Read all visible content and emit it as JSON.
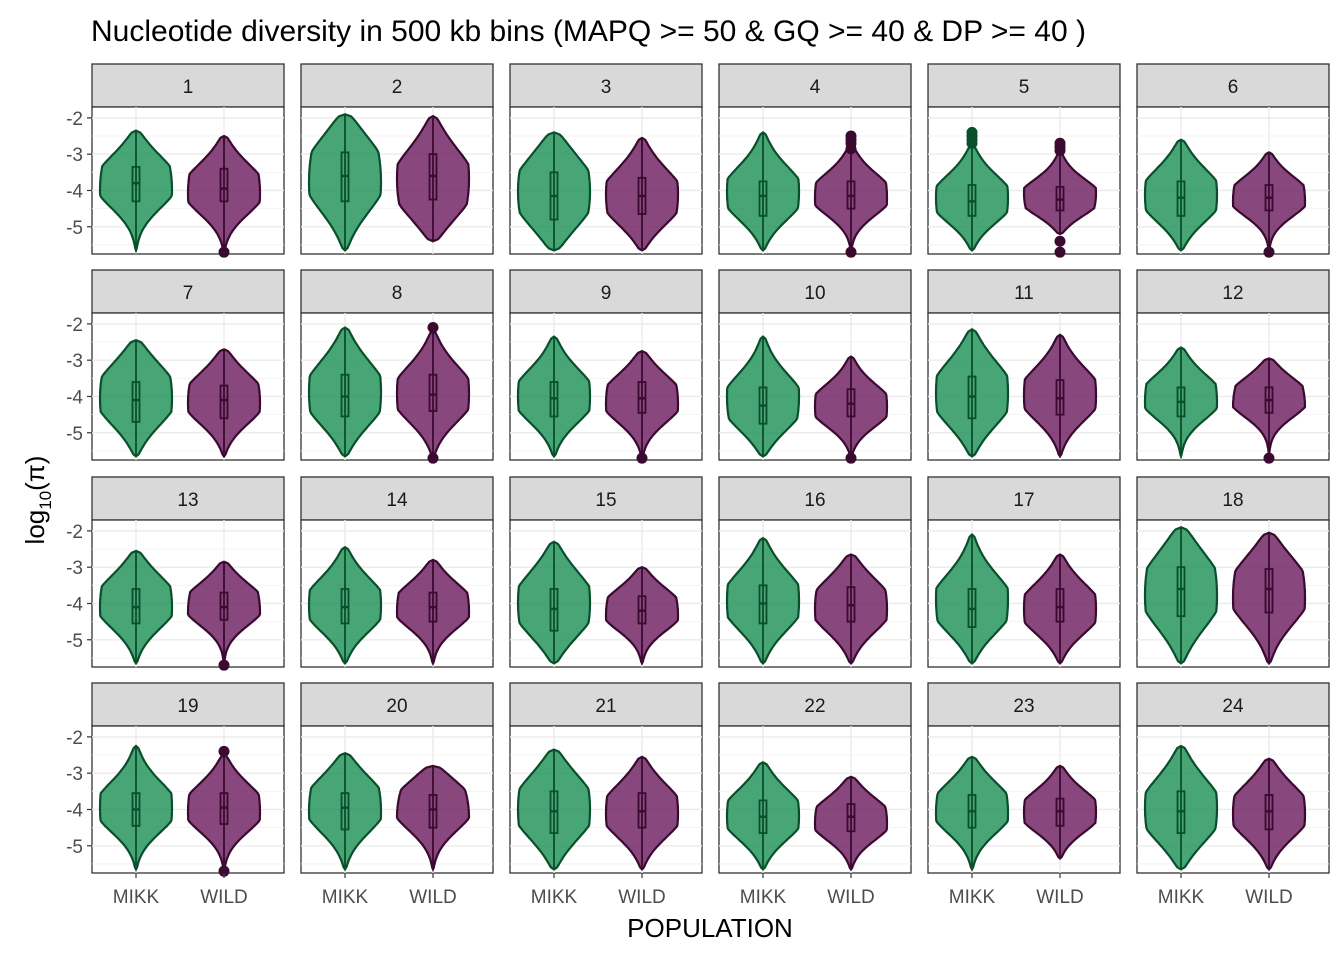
{
  "chart_data": {
    "type": "violin",
    "title": "Nucleotide diversity in 500 kb bins (MAPQ >= 50 & GQ >= 40 & DP >= 40 )",
    "xlabel": "POPULATION",
    "ylabel": "log10(π)",
    "ylabel_base": "log",
    "ylabel_sub": "10",
    "ylabel_rest": "(π)",
    "categories": [
      "MIKK",
      "WILD"
    ],
    "y_ticks": [
      -2,
      -3,
      -4,
      -5
    ],
    "y_tick_labels": [
      "-2",
      "-3",
      "-4",
      "-5"
    ],
    "ylim": [
      -5.75,
      -1.7
    ],
    "facet_layout": {
      "rows": 4,
      "cols": 6
    },
    "colors": {
      "MIKK": {
        "fill": "#1f9158",
        "stroke": "#0a4f2b"
      },
      "WILD": {
        "fill": "#6e1e60",
        "stroke": "#3a0a30"
      }
    },
    "facets": [
      {
        "label": "1",
        "MIKK": {
          "max": -2.35,
          "min": -5.65,
          "q1": -4.3,
          "median": -3.8,
          "q3": -3.35,
          "mode": -3.8,
          "outliers": []
        },
        "WILD": {
          "max": -2.5,
          "min": -5.65,
          "q1": -4.3,
          "median": -3.95,
          "q3": -3.4,
          "mode": -4.0,
          "outliers": [
            -5.7
          ]
        }
      },
      {
        "label": "2",
        "MIKK": {
          "max": -1.9,
          "min": -5.65,
          "q1": -4.3,
          "median": -3.6,
          "q3": -2.95,
          "mode": -3.6,
          "outliers": []
        },
        "WILD": {
          "max": -1.95,
          "min": -5.4,
          "q1": -4.25,
          "median": -3.6,
          "q3": -3.0,
          "mode": -3.9,
          "outliers": []
        }
      },
      {
        "label": "3",
        "MIKK": {
          "max": -2.4,
          "min": -5.65,
          "q1": -4.8,
          "median": -4.15,
          "q3": -3.5,
          "mode": -4.1,
          "outliers": []
        },
        "WILD": {
          "max": -2.55,
          "min": -5.65,
          "q1": -4.65,
          "median": -4.15,
          "q3": -3.65,
          "mode": -4.25,
          "outliers": []
        }
      },
      {
        "label": "4",
        "MIKK": {
          "max": -2.4,
          "min": -5.65,
          "q1": -4.7,
          "median": -4.15,
          "q3": -3.75,
          "mode": -4.15,
          "outliers": []
        },
        "WILD": {
          "max": -2.75,
          "min": -5.65,
          "q1": -4.5,
          "median": -4.15,
          "q3": -3.75,
          "mode": -4.15,
          "outliers": [
            -2.5,
            -2.6,
            -2.7,
            -2.85,
            -5.7
          ]
        }
      },
      {
        "label": "5",
        "MIKK": {
          "max": -2.75,
          "min": -5.65,
          "q1": -4.7,
          "median": -4.3,
          "q3": -3.85,
          "mode": -4.3,
          "outliers": [
            -2.4,
            -2.5,
            -2.6,
            -2.7
          ]
        },
        "WILD": {
          "max": -2.95,
          "min": -5.2,
          "q1": -4.55,
          "median": -4.25,
          "q3": -3.9,
          "mode": -4.25,
          "outliers": [
            -2.7,
            -2.8,
            -2.9,
            -5.4,
            -5.7
          ]
        }
      },
      {
        "label": "6",
        "MIKK": {
          "max": -2.6,
          "min": -5.65,
          "q1": -4.7,
          "median": -4.2,
          "q3": -3.75,
          "mode": -4.2,
          "outliers": []
        },
        "WILD": {
          "max": -2.95,
          "min": -5.65,
          "q1": -4.55,
          "median": -4.2,
          "q3": -3.85,
          "mode": -4.2,
          "outliers": [
            -5.7
          ]
        }
      },
      {
        "label": "7",
        "MIKK": {
          "max": -2.45,
          "min": -5.65,
          "q1": -4.7,
          "median": -4.1,
          "q3": -3.6,
          "mode": -4.0,
          "outliers": []
        },
        "WILD": {
          "max": -2.7,
          "min": -5.65,
          "q1": -4.6,
          "median": -4.1,
          "q3": -3.7,
          "mode": -4.1,
          "outliers": []
        }
      },
      {
        "label": "8",
        "MIKK": {
          "max": -2.1,
          "min": -5.65,
          "q1": -4.55,
          "median": -4.0,
          "q3": -3.4,
          "mode": -4.0,
          "outliers": []
        },
        "WILD": {
          "max": -2.2,
          "min": -5.65,
          "q1": -4.4,
          "median": -3.95,
          "q3": -3.4,
          "mode": -4.0,
          "outliers": [
            -2.1,
            -5.7
          ]
        }
      },
      {
        "label": "9",
        "MIKK": {
          "max": -2.35,
          "min": -5.65,
          "q1": -4.55,
          "median": -4.05,
          "q3": -3.6,
          "mode": -4.05,
          "outliers": []
        },
        "WILD": {
          "max": -2.75,
          "min": -5.65,
          "q1": -4.45,
          "median": -4.05,
          "q3": -3.6,
          "mode": -4.1,
          "outliers": [
            -5.7
          ]
        }
      },
      {
        "label": "10",
        "MIKK": {
          "max": -2.35,
          "min": -5.65,
          "q1": -4.75,
          "median": -4.25,
          "q3": -3.75,
          "mode": -4.25,
          "outliers": []
        },
        "WILD": {
          "max": -2.9,
          "min": -5.65,
          "q1": -4.55,
          "median": -4.2,
          "q3": -3.8,
          "mode": -4.3,
          "outliers": [
            -5.7
          ]
        }
      },
      {
        "label": "11",
        "MIKK": {
          "max": -2.15,
          "min": -5.65,
          "q1": -4.6,
          "median": -4.0,
          "q3": -3.45,
          "mode": -4.0,
          "outliers": []
        },
        "WILD": {
          "max": -2.3,
          "min": -5.65,
          "q1": -4.5,
          "median": -4.05,
          "q3": -3.55,
          "mode": -4.0,
          "outliers": []
        }
      },
      {
        "label": "12",
        "MIKK": {
          "max": -2.65,
          "min": -5.65,
          "q1": -4.55,
          "median": -4.15,
          "q3": -3.75,
          "mode": -4.05,
          "outliers": []
        },
        "WILD": {
          "max": -2.95,
          "min": -5.65,
          "q1": -4.45,
          "median": -4.1,
          "q3": -3.75,
          "mode": -4.05,
          "outliers": [
            -5.7
          ]
        }
      },
      {
        "label": "13",
        "MIKK": {
          "max": -2.55,
          "min": -5.65,
          "q1": -4.55,
          "median": -4.1,
          "q3": -3.6,
          "mode": -4.0,
          "outliers": []
        },
        "WILD": {
          "max": -2.85,
          "min": -5.65,
          "q1": -4.45,
          "median": -4.1,
          "q3": -3.7,
          "mode": -4.05,
          "outliers": [
            -5.7
          ]
        }
      },
      {
        "label": "14",
        "MIKK": {
          "max": -2.45,
          "min": -5.65,
          "q1": -4.55,
          "median": -4.1,
          "q3": -3.6,
          "mode": -4.1,
          "outliers": []
        },
        "WILD": {
          "max": -2.8,
          "min": -5.65,
          "q1": -4.5,
          "median": -4.1,
          "q3": -3.7,
          "mode": -4.1,
          "outliers": []
        }
      },
      {
        "label": "15",
        "MIKK": {
          "max": -2.3,
          "min": -5.65,
          "q1": -4.75,
          "median": -4.15,
          "q3": -3.6,
          "mode": -4.1,
          "outliers": []
        },
        "WILD": {
          "max": -3.0,
          "min": -5.65,
          "q1": -4.55,
          "median": -4.2,
          "q3": -3.8,
          "mode": -4.2,
          "outliers": []
        }
      },
      {
        "label": "16",
        "MIKK": {
          "max": -2.2,
          "min": -5.65,
          "q1": -4.55,
          "median": -4.0,
          "q3": -3.5,
          "mode": -4.0,
          "outliers": []
        },
        "WILD": {
          "max": -2.65,
          "min": -5.65,
          "q1": -4.5,
          "median": -4.05,
          "q3": -3.55,
          "mode": -4.1,
          "outliers": []
        }
      },
      {
        "label": "17",
        "MIKK": {
          "max": -2.1,
          "min": -5.65,
          "q1": -4.65,
          "median": -4.15,
          "q3": -3.6,
          "mode": -4.1,
          "outliers": []
        },
        "WILD": {
          "max": -2.65,
          "min": -5.65,
          "q1": -4.5,
          "median": -4.1,
          "q3": -3.6,
          "mode": -4.2,
          "outliers": []
        }
      },
      {
        "label": "18",
        "MIKK": {
          "max": -1.9,
          "min": -5.65,
          "q1": -4.35,
          "median": -3.6,
          "q3": -3.0,
          "mode": -3.7,
          "outliers": []
        },
        "WILD": {
          "max": -2.05,
          "min": -5.65,
          "q1": -4.25,
          "median": -3.6,
          "q3": -3.05,
          "mode": -3.7,
          "outliers": []
        }
      },
      {
        "label": "19",
        "MIKK": {
          "max": -2.25,
          "min": -5.65,
          "q1": -4.45,
          "median": -4.0,
          "q3": -3.55,
          "mode": -4.0,
          "outliers": []
        },
        "WILD": {
          "max": -2.5,
          "min": -5.65,
          "q1": -4.4,
          "median": -3.95,
          "q3": -3.55,
          "mode": -4.0,
          "outliers": [
            -2.4,
            -5.7
          ]
        }
      },
      {
        "label": "20",
        "MIKK": {
          "max": -2.45,
          "min": -5.65,
          "q1": -4.55,
          "median": -3.95,
          "q3": -3.55,
          "mode": -3.9,
          "outliers": []
        },
        "WILD": {
          "max": -2.8,
          "min": -5.65,
          "q1": -4.5,
          "median": -4.0,
          "q3": -3.6,
          "mode": -3.9,
          "outliers": []
        }
      },
      {
        "label": "21",
        "MIKK": {
          "max": -2.35,
          "min": -5.65,
          "q1": -4.65,
          "median": -4.05,
          "q3": -3.5,
          "mode": -4.0,
          "outliers": []
        },
        "WILD": {
          "max": -2.55,
          "min": -5.65,
          "q1": -4.5,
          "median": -4.05,
          "q3": -3.55,
          "mode": -4.1,
          "outliers": []
        }
      },
      {
        "label": "22",
        "MIKK": {
          "max": -2.7,
          "min": -5.65,
          "q1": -4.65,
          "median": -4.2,
          "q3": -3.75,
          "mode": -4.2,
          "outliers": []
        },
        "WILD": {
          "max": -3.1,
          "min": -5.65,
          "q1": -4.6,
          "median": -4.2,
          "q3": -3.85,
          "mode": -4.3,
          "outliers": []
        }
      },
      {
        "label": "23",
        "MIKK": {
          "max": -2.55,
          "min": -5.65,
          "q1": -4.5,
          "median": -4.05,
          "q3": -3.6,
          "mode": -4.0,
          "outliers": []
        },
        "WILD": {
          "max": -2.8,
          "min": -5.35,
          "q1": -4.45,
          "median": -4.05,
          "q3": -3.7,
          "mode": -4.1,
          "outliers": []
        }
      },
      {
        "label": "24",
        "MIKK": {
          "max": -2.25,
          "min": -5.65,
          "q1": -4.65,
          "median": -4.05,
          "q3": -3.5,
          "mode": -4.1,
          "outliers": []
        },
        "WILD": {
          "max": -2.6,
          "min": -5.65,
          "q1": -4.55,
          "median": -4.05,
          "q3": -3.6,
          "mode": -4.1,
          "outliers": []
        }
      }
    ]
  }
}
